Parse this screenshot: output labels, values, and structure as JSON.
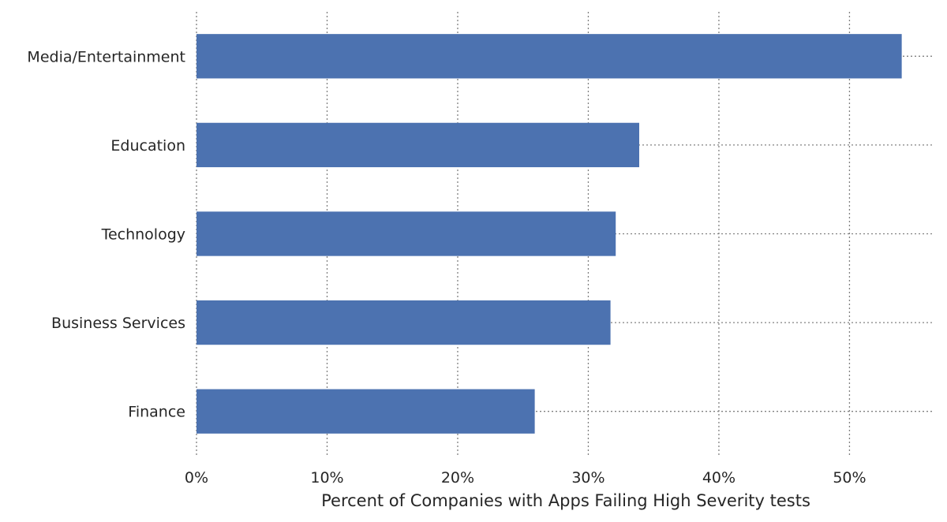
{
  "chart_data": {
    "type": "bar",
    "orientation": "horizontal",
    "categories": [
      "Media/Entertainment",
      "Education",
      "Technology",
      "Business Services",
      "Finance"
    ],
    "values": [
      54.0,
      33.9,
      32.1,
      31.7,
      25.9
    ],
    "xlabel": "Percent of Companies with Apps Failing High Severity tests",
    "ylabel": "",
    "xlim": [
      0,
      56.5
    ],
    "x_ticks": [
      "0%",
      "10%",
      "20%",
      "30%",
      "40%",
      "50%"
    ],
    "x_tick_values": [
      0,
      10,
      20,
      30,
      40,
      50
    ],
    "bar_color": "#4c72b0",
    "grid": true,
    "grid_style": "dotted",
    "grid_color": "#808080",
    "legend": "none"
  }
}
